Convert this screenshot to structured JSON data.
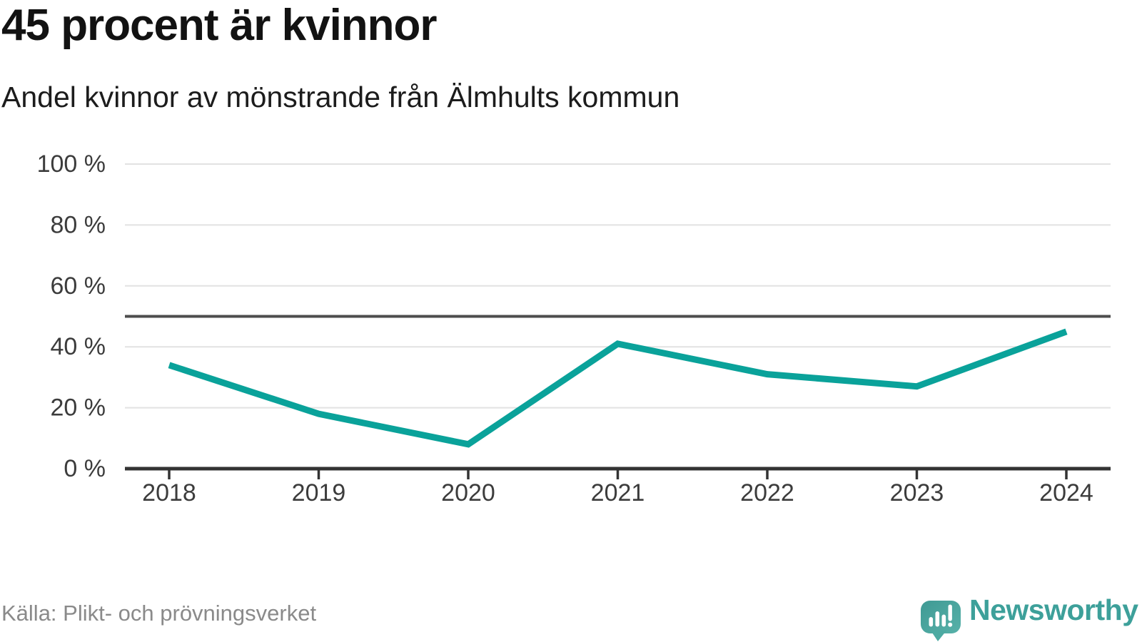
{
  "header": {
    "title": "45 procent är kvinnor",
    "subtitle": "Andel kvinnor av mönstrande från Älmhults kommun"
  },
  "chart_data": {
    "type": "line",
    "title": "45 procent är kvinnor",
    "subtitle": "Andel kvinnor av mönstrande från Älmhults kommun",
    "categories": [
      "2018",
      "2019",
      "2020",
      "2021",
      "2022",
      "2023",
      "2024"
    ],
    "series": [
      {
        "name": "Andel kvinnor av mönstrande",
        "values": [
          34,
          18,
          8,
          41,
          31,
          27,
          45
        ]
      }
    ],
    "unit": "%",
    "ylim": [
      0,
      100
    ],
    "yticks": [
      {
        "value": 0,
        "label": "0 %"
      },
      {
        "value": 20,
        "label": "20 %"
      },
      {
        "value": 40,
        "label": "40 %"
      },
      {
        "value": 60,
        "label": "60 %"
      },
      {
        "value": 80,
        "label": "80 %"
      },
      {
        "value": 100,
        "label": "100 %"
      }
    ],
    "reference_line": {
      "value": 50
    },
    "grid": true,
    "legend": "none",
    "line_width": 9
  },
  "colors": {
    "line": "#0aa29a",
    "reference": "#4d4d4d",
    "axis": "#333333",
    "grid": "#e2e2e2",
    "tick_label": "#3c3c3c",
    "logo_teal": "#4caaa2",
    "brand_text": "#3da09a"
  },
  "footer": {
    "source": "Källa: Plikt- och prövningsverket",
    "brand": "Newsworthy"
  }
}
